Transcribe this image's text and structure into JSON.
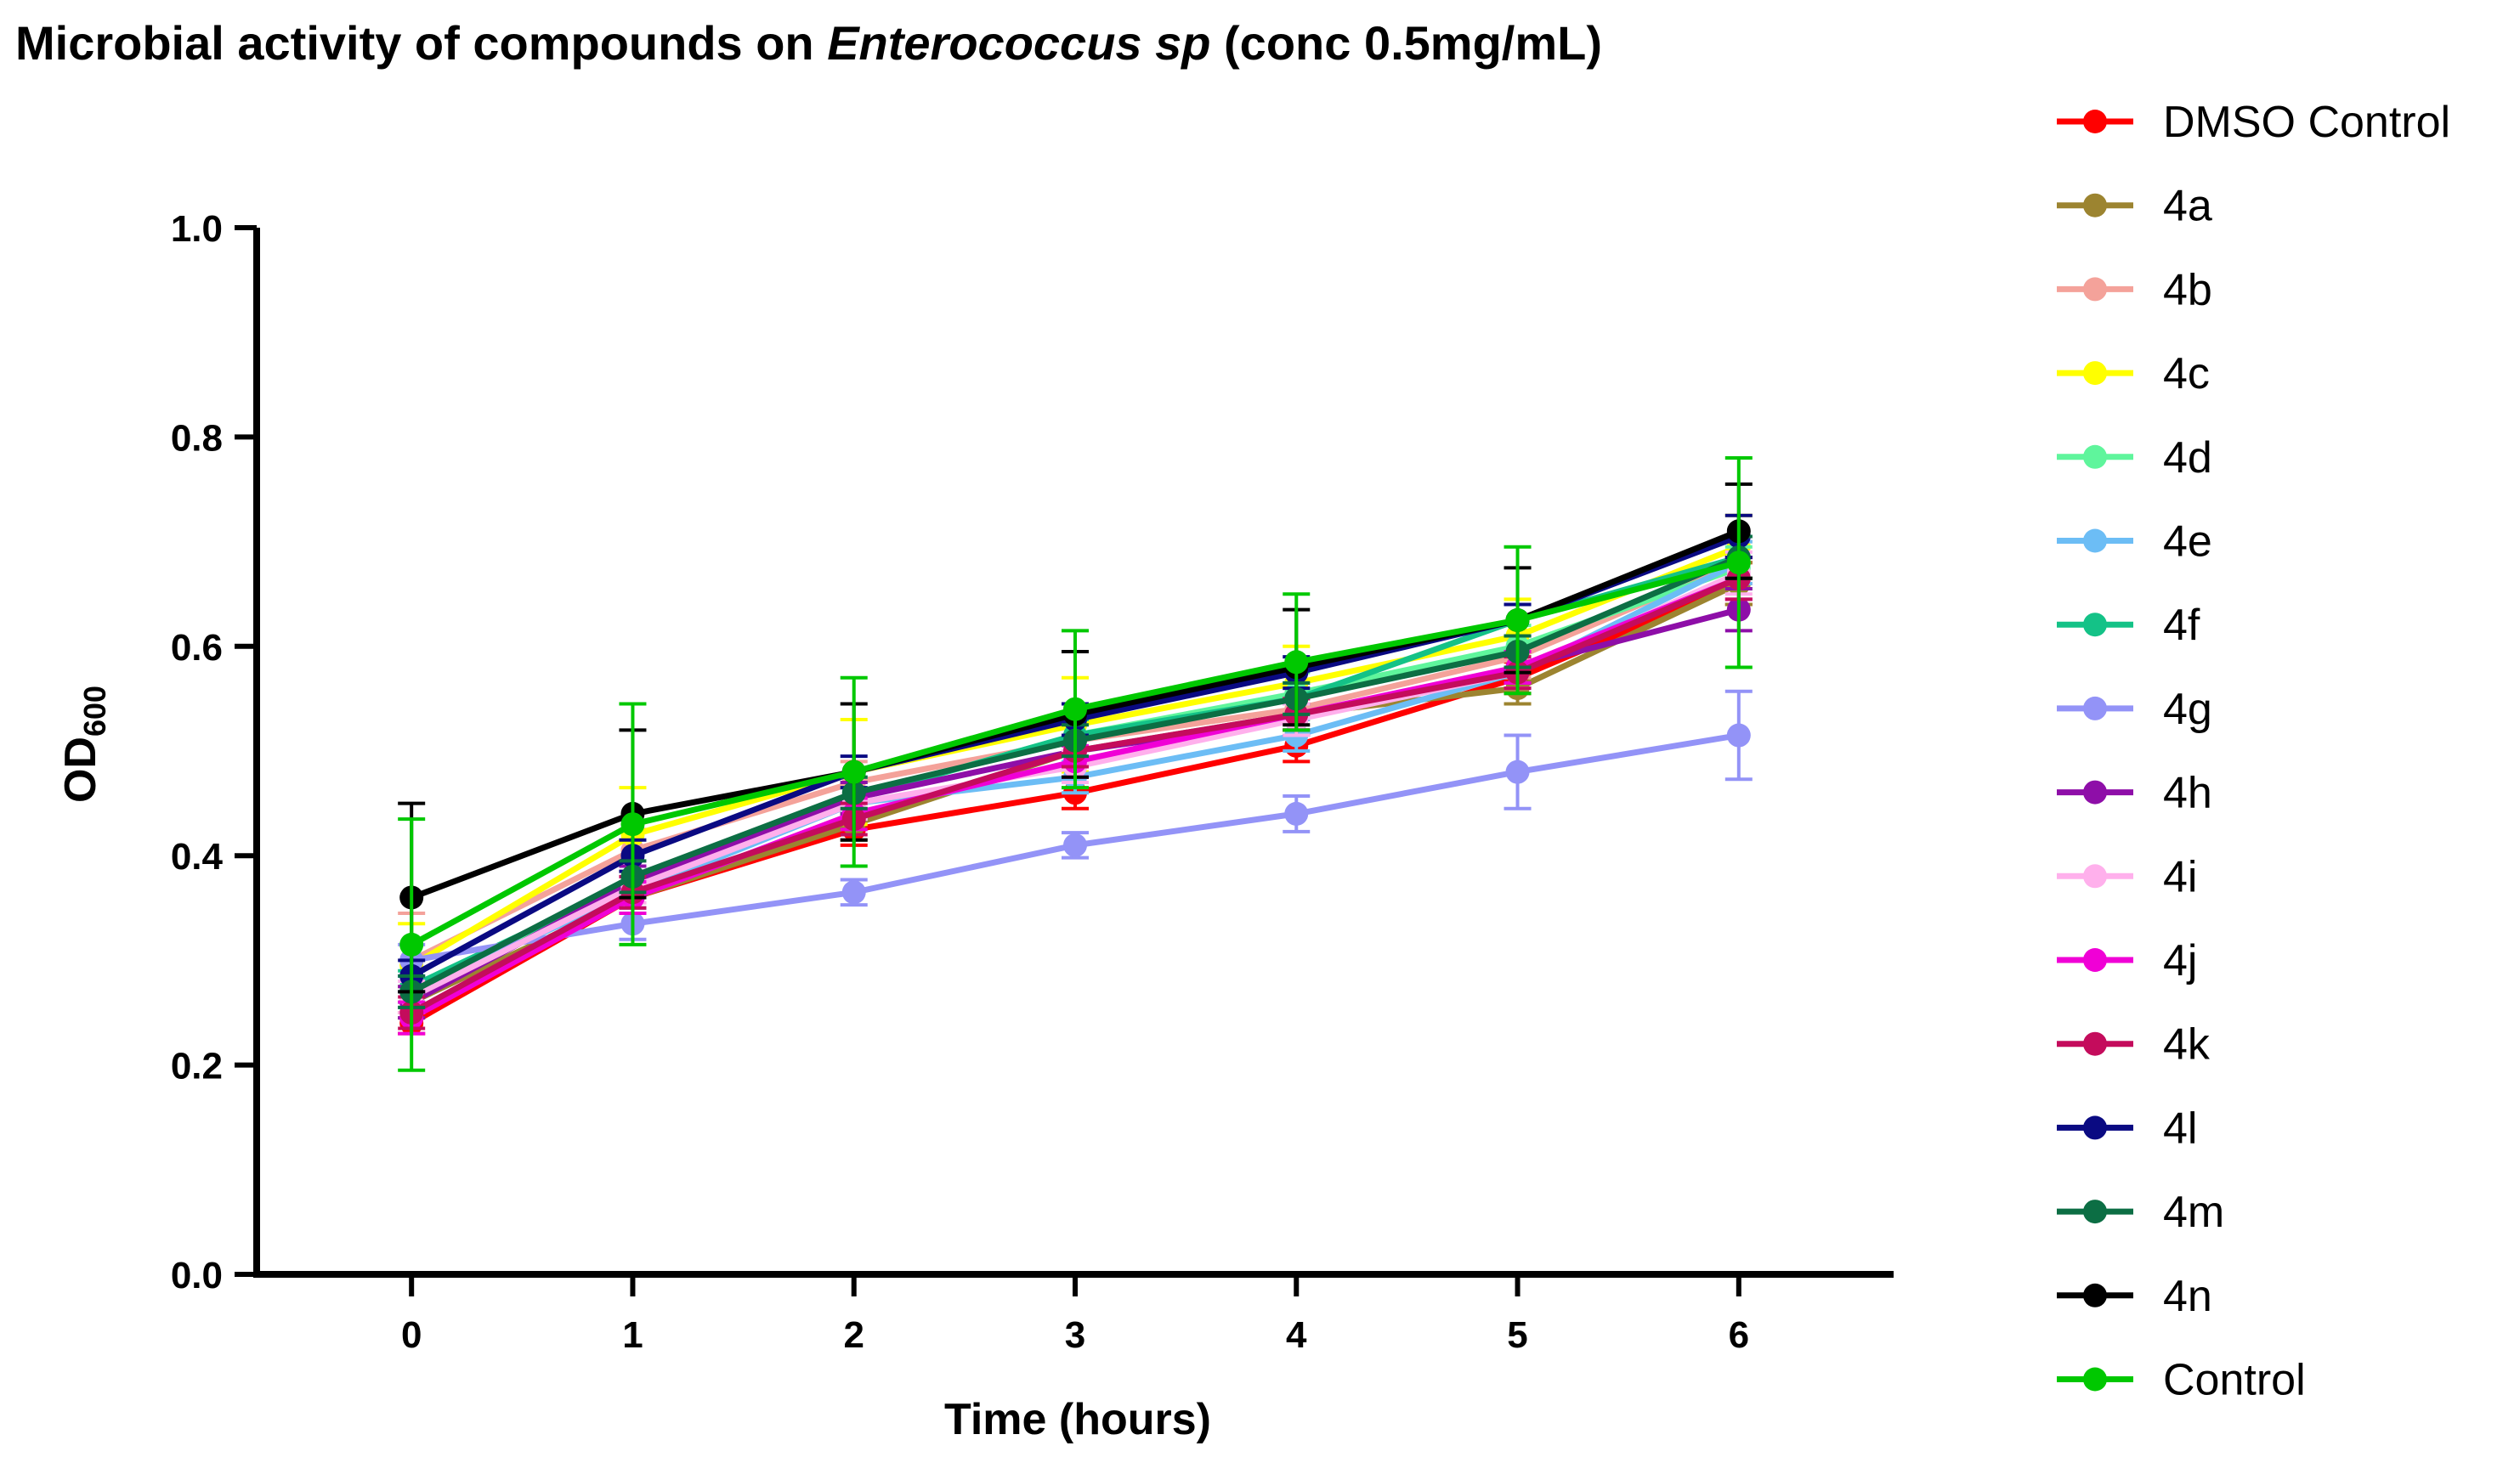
{
  "chart_data": {
    "type": "line",
    "title_prefix": "Microbial activity of compounds on ",
    "title_italic": "Enterococcus sp",
    "title_suffix": " (conc 0.5mg/mL)",
    "xlabel": "Time (hours)",
    "ylabel_main": "OD",
    "ylabel_sub": "600",
    "x": [
      0,
      1,
      2,
      3,
      4,
      5,
      6
    ],
    "x_tick_labels": [
      "0",
      "1",
      "2",
      "3",
      "4",
      "5",
      "6"
    ],
    "xlim": [
      -0.7,
      6.7
    ],
    "ylim": [
      0,
      1.0
    ],
    "y_ticks": [
      0.0,
      0.2,
      0.4,
      0.6,
      0.8,
      1.0
    ],
    "y_tick_labels": [
      "0.0",
      "0.2",
      "0.4",
      "0.6",
      "0.8",
      "1.0"
    ],
    "legend_position": "right",
    "series": [
      {
        "name": "DMSO Control",
        "color": "#FF0000",
        "values": [
          0.24,
          0.36,
          0.425,
          0.46,
          0.505,
          0.57,
          0.66
        ],
        "errors": [
          0.01,
          0.01,
          0.015,
          0.015,
          0.015,
          0.015,
          0.02
        ]
      },
      {
        "name": "4a",
        "color": "#9C8430",
        "values": [
          0.26,
          0.36,
          0.43,
          0.5,
          0.535,
          0.56,
          0.66
        ],
        "errors": [
          0.015,
          0.015,
          0.015,
          0.015,
          0.015,
          0.015,
          0.02
        ]
      },
      {
        "name": "4b",
        "color": "#F4A29A",
        "values": [
          0.3,
          0.405,
          0.47,
          0.51,
          0.54,
          0.59,
          0.68
        ],
        "errors": [
          0.045,
          0.02,
          0.02,
          0.02,
          0.02,
          0.02,
          0.02
        ]
      },
      {
        "name": "4c",
        "color": "#FFFF00",
        "values": [
          0.295,
          0.42,
          0.48,
          0.525,
          0.565,
          0.61,
          0.695
        ],
        "errors": [
          0.04,
          0.045,
          0.05,
          0.045,
          0.035,
          0.035,
          0.03
        ]
      },
      {
        "name": "4d",
        "color": "#5FF59C",
        "values": [
          0.27,
          0.37,
          0.455,
          0.515,
          0.555,
          0.6,
          0.675
        ],
        "errors": [
          0.015,
          0.015,
          0.02,
          0.02,
          0.02,
          0.02,
          0.02
        ]
      },
      {
        "name": "4e",
        "color": "#6CBDF5",
        "values": [
          0.27,
          0.365,
          0.45,
          0.475,
          0.515,
          0.575,
          0.68
        ],
        "errors": [
          0.015,
          0.015,
          0.015,
          0.015,
          0.015,
          0.015,
          0.02
        ]
      },
      {
        "name": "4f",
        "color": "#14C287",
        "values": [
          0.275,
          0.375,
          0.455,
          0.515,
          0.55,
          0.625,
          0.685
        ],
        "errors": [
          0.015,
          0.015,
          0.015,
          0.015,
          0.015,
          0.015,
          0.02
        ]
      },
      {
        "name": "4g",
        "color": "#9393F7",
        "values": [
          0.3,
          0.335,
          0.365,
          0.41,
          0.44,
          0.48,
          0.515
        ],
        "errors": [
          0.015,
          0.015,
          0.012,
          0.012,
          0.017,
          0.035,
          0.042
        ]
      },
      {
        "name": "4h",
        "color": "#8E0EA8",
        "values": [
          0.26,
          0.375,
          0.455,
          0.5,
          0.53,
          0.58,
          0.635
        ],
        "errors": [
          0.015,
          0.015,
          0.015,
          0.015,
          0.015,
          0.015,
          0.02
        ]
      },
      {
        "name": "4i",
        "color": "#FFB0EC",
        "values": [
          0.265,
          0.37,
          0.45,
          0.485,
          0.53,
          0.575,
          0.67
        ],
        "errors": [
          0.015,
          0.015,
          0.015,
          0.015,
          0.015,
          0.015,
          0.02
        ]
      },
      {
        "name": "4j",
        "color": "#F000D6",
        "values": [
          0.245,
          0.36,
          0.44,
          0.49,
          0.535,
          0.58,
          0.665
        ],
        "errors": [
          0.015,
          0.015,
          0.015,
          0.015,
          0.015,
          0.015,
          0.02
        ]
      },
      {
        "name": "4k",
        "color": "#C40C5C",
        "values": [
          0.25,
          0.365,
          0.435,
          0.5,
          0.535,
          0.575,
          0.665
        ],
        "errors": [
          0.015,
          0.015,
          0.015,
          0.015,
          0.015,
          0.015,
          0.02
        ]
      },
      {
        "name": "4l",
        "color": "#0A0A82",
        "values": [
          0.285,
          0.4,
          0.48,
          0.53,
          0.575,
          0.625,
          0.705
        ],
        "errors": [
          0.015,
          0.015,
          0.015,
          0.015,
          0.015,
          0.015,
          0.02
        ]
      },
      {
        "name": "4m",
        "color": "#0C6E44",
        "values": [
          0.27,
          0.38,
          0.46,
          0.51,
          0.55,
          0.595,
          0.685
        ],
        "errors": [
          0.015,
          0.015,
          0.015,
          0.015,
          0.015,
          0.015,
          0.02
        ]
      },
      {
        "name": "4n",
        "color": "#000000",
        "values": [
          0.36,
          0.44,
          0.48,
          0.535,
          0.58,
          0.625,
          0.71
        ],
        "errors": [
          0.09,
          0.08,
          0.065,
          0.06,
          0.055,
          0.05,
          0.045
        ]
      },
      {
        "name": "Control",
        "color": "#00C800",
        "values": [
          0.315,
          0.43,
          0.48,
          0.54,
          0.585,
          0.625,
          0.68
        ],
        "errors": [
          0.12,
          0.115,
          0.09,
          0.075,
          0.065,
          0.07,
          0.1
        ]
      }
    ]
  }
}
